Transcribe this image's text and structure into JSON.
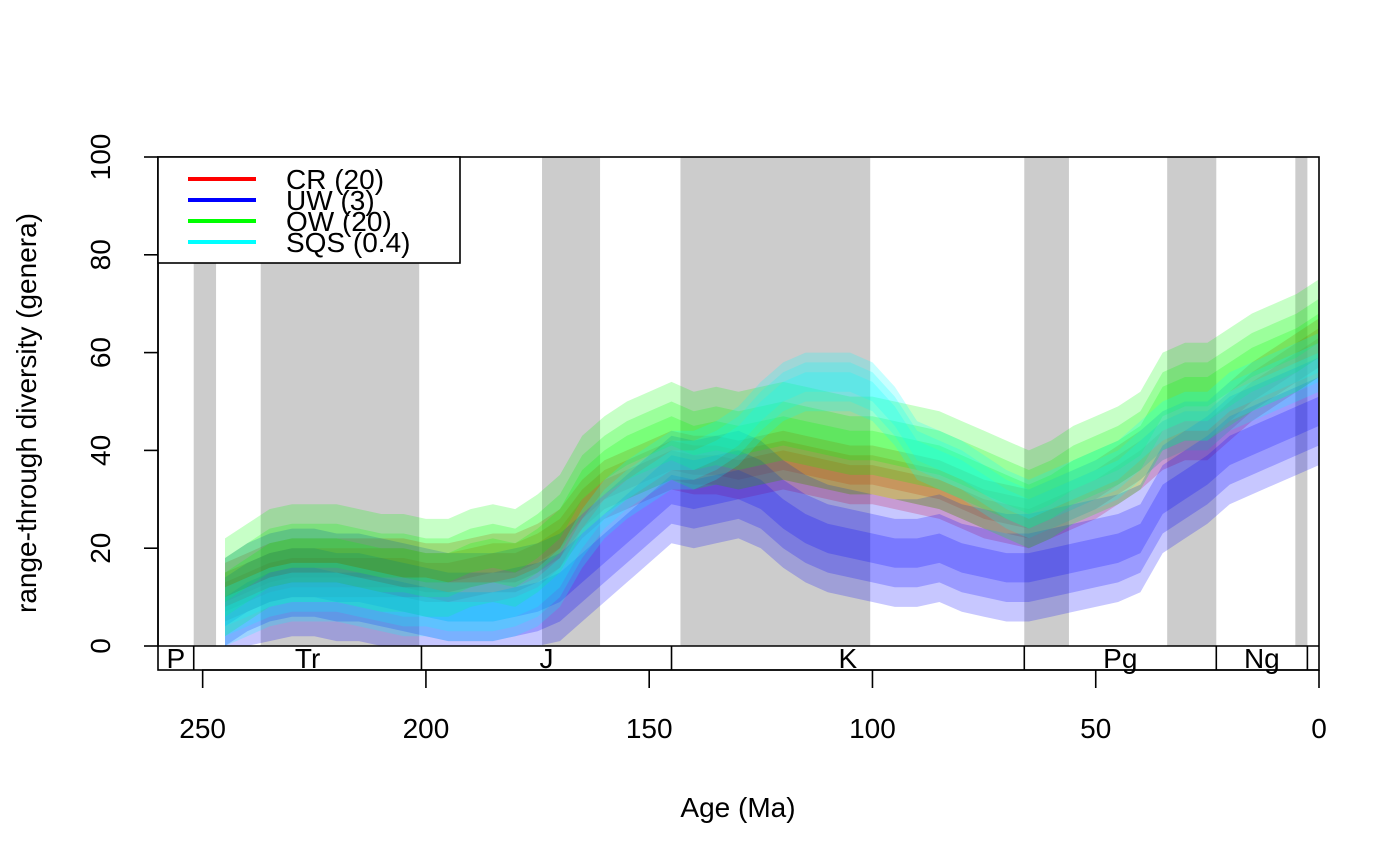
{
  "chart_data": {
    "type": "area",
    "title": "",
    "xlabel": "Age (Ma)",
    "ylabel": "range-through diversity (genera)",
    "xlim": [
      260,
      0
    ],
    "ylim": [
      0,
      100
    ],
    "x_ticks": [
      250,
      200,
      150,
      100,
      50,
      0
    ],
    "y_ticks": [
      0,
      20,
      40,
      60,
      80,
      100
    ],
    "grid": false,
    "legend_position": "top-left",
    "legend": [
      {
        "label": "CR (20)",
        "color": "#ff0000"
      },
      {
        "label": "UW (3)",
        "color": "#0000ff"
      },
      {
        "label": "OW (20)",
        "color": "#00ff00"
      },
      {
        "label": "SQS (0.4)",
        "color": "#00ffff"
      }
    ],
    "shaded_intervals": [
      [
        252,
        247
      ],
      [
        237,
        201.5
      ],
      [
        174,
        161
      ],
      [
        143,
        100.5
      ],
      [
        66,
        56
      ],
      [
        34,
        23
      ],
      [
        5.3,
        2.6
      ]
    ],
    "periods": [
      {
        "label": "P",
        "from": 260,
        "to": 252
      },
      {
        "label": "Tr",
        "from": 252,
        "to": 201
      },
      {
        "label": "J",
        "from": 201,
        "to": 145
      },
      {
        "label": "K",
        "from": 145,
        "to": 66
      },
      {
        "label": "Pg",
        "from": 66,
        "to": 23
      },
      {
        "label": "Ng",
        "from": 23,
        "to": 2.6
      },
      {
        "label": "",
        "from": 2.6,
        "to": 0
      }
    ],
    "series": [
      {
        "name": "CR (20)",
        "color": "#ff0000",
        "x": [
          245,
          240,
          235,
          230,
          225,
          220,
          215,
          210,
          205,
          200,
          195,
          190,
          185,
          180,
          175,
          170,
          165,
          160,
          155,
          150,
          145,
          140,
          135,
          130,
          125,
          120,
          115,
          110,
          105,
          100,
          95,
          90,
          85,
          80,
          75,
          70,
          65,
          60,
          55,
          50,
          45,
          40,
          35,
          30,
          25,
          20,
          15,
          10,
          5,
          0
        ],
        "values": [
          11,
          13,
          15,
          16,
          16,
          16,
          16,
          16,
          16,
          15,
          15,
          16,
          17,
          17,
          19,
          22,
          28,
          32,
          34,
          36,
          38,
          37,
          37,
          36,
          37,
          38,
          37,
          36,
          35,
          35,
          34,
          33,
          32,
          30,
          28,
          27,
          26,
          28,
          30,
          32,
          35,
          38,
          42,
          44,
          44,
          48,
          52,
          55,
          58,
          61
        ],
        "band_half_widths": [
          2,
          4,
          6
        ]
      },
      {
        "name": "UW (3)",
        "color": "#0000ff",
        "x": [
          245,
          240,
          235,
          230,
          225,
          220,
          215,
          210,
          205,
          200,
          195,
          190,
          185,
          180,
          175,
          170,
          165,
          160,
          155,
          150,
          145,
          140,
          135,
          130,
          125,
          120,
          115,
          110,
          105,
          100,
          95,
          90,
          85,
          80,
          75,
          70,
          65,
          60,
          55,
          50,
          45,
          40,
          35,
          30,
          25,
          20,
          15,
          10,
          5,
          0
        ],
        "values": [
          7,
          10,
          12,
          13,
          13,
          12,
          12,
          11,
          10,
          9,
          8,
          8,
          8,
          9,
          10,
          12,
          16,
          20,
          24,
          28,
          32,
          31,
          32,
          33,
          31,
          27,
          24,
          22,
          21,
          20,
          19,
          19,
          20,
          18,
          17,
          16,
          16,
          17,
          18,
          19,
          20,
          22,
          30,
          33,
          36,
          40,
          42,
          44,
          46,
          48
        ],
        "band_half_widths": [
          3,
          7,
          11
        ]
      },
      {
        "name": "OW (20)",
        "color": "#00ff00",
        "x": [
          245,
          240,
          235,
          230,
          225,
          220,
          215,
          210,
          205,
          200,
          195,
          190,
          185,
          180,
          175,
          170,
          165,
          160,
          155,
          150,
          145,
          140,
          135,
          130,
          125,
          120,
          115,
          110,
          105,
          100,
          95,
          90,
          85,
          80,
          75,
          70,
          65,
          60,
          55,
          50,
          45,
          40,
          35,
          30,
          25,
          20,
          15,
          10,
          5,
          0
        ],
        "values": [
          12,
          15,
          18,
          19,
          19,
          19,
          18,
          17,
          17,
          16,
          16,
          18,
          19,
          18,
          21,
          25,
          33,
          37,
          40,
          42,
          44,
          42,
          43,
          42,
          43,
          44,
          43,
          42,
          41,
          41,
          40,
          39,
          38,
          36,
          34,
          32,
          30,
          32,
          35,
          37,
          39,
          42,
          50,
          52,
          52,
          55,
          58,
          60,
          62,
          65
        ],
        "band_half_widths": [
          3,
          6,
          10
        ]
      },
      {
        "name": "SQS (0.4)",
        "color": "#00ffff",
        "x": [
          245,
          240,
          235,
          230,
          225,
          220,
          215,
          210,
          205,
          200,
          195,
          190,
          185,
          180,
          175,
          170,
          165,
          160,
          155,
          150,
          145,
          140,
          135,
          130,
          125,
          120,
          115,
          110,
          105,
          100,
          95,
          90,
          85,
          80,
          75,
          70,
          65,
          60,
          55,
          50,
          45,
          40,
          35,
          30,
          25,
          20,
          15,
          10,
          5,
          0
        ],
        "values": [
          6,
          8,
          10,
          11,
          11,
          11,
          10,
          9,
          8,
          8,
          7,
          7,
          7,
          8,
          10,
          14,
          22,
          28,
          32,
          35,
          38,
          38,
          40,
          43,
          48,
          52,
          54,
          54,
          54,
          52,
          47,
          40,
          38,
          36,
          33,
          30,
          28,
          30,
          32,
          34,
          36,
          40,
          44,
          46,
          46,
          50,
          52,
          54,
          56,
          58
        ],
        "band_half_widths": [
          2,
          4,
          6
        ]
      }
    ]
  }
}
